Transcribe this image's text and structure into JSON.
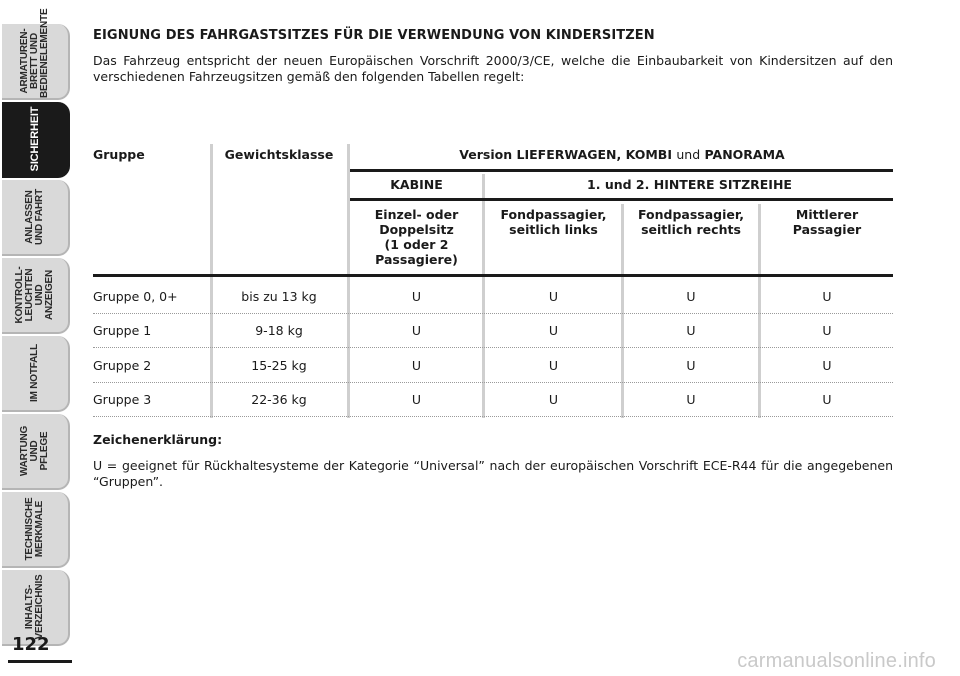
{
  "sidebar": {
    "tabs": [
      {
        "label": "ARMATUREN-\nBRETT UND\nBEDIENELEMENTE",
        "active": false
      },
      {
        "label": "SICHERHEIT",
        "active": true
      },
      {
        "label": "ANLASSEN\nUND FAHRT",
        "active": false
      },
      {
        "label": "KONTROLL-\nLEUCHTEN UND\nANZEIGEN",
        "active": false
      },
      {
        "label": "IM NOTFALL",
        "active": false
      },
      {
        "label": "WARTUNG UND\nPFLEGE",
        "active": false
      },
      {
        "label": "TECHNISCHE\nMERKMALE",
        "active": false
      },
      {
        "label": "INHALTS-\nVERZEICHNIS",
        "active": false
      }
    ],
    "page_number": "122"
  },
  "heading": "EIGNUNG DES FAHRGASTSITZES FÜR DIE VERWENDUNG VON KINDERSITZEN",
  "intro": "Das Fahrzeug entspricht der neuen Europäischen Vorschrift 2000/3/CE, welche die Einbaubarkeit von Kindersitzen auf den verschiedenen Fahrzeugsitzen gemäß den folgenden Tabellen regelt:",
  "table": {
    "col_group": "Gruppe",
    "col_weight": "Gewichtsklasse",
    "version_prefix": "Version",
    "version_bold": "LIEFERWAGEN, KOMBI",
    "version_und": "und",
    "version_bold2": "PANORAMA",
    "kabine": "KABINE",
    "rear_prefix": "1. und 2.",
    "rear_bold": "HINTERE SITZREIHE",
    "seat_cabin": "Einzel- oder\nDoppelsitz\n(1 oder 2\nPassagiere)",
    "seat_rear_left": "Fondpassagier,\nseitlich links",
    "seat_rear_right": "Fondpassagier,\nseitlich rechts",
    "seat_middle": "Mittlerer\nPassagier",
    "rows": [
      {
        "group": "Gruppe 0, 0+",
        "weight": "bis zu 13 kg",
        "vals": [
          "U",
          "U",
          "U",
          "U"
        ]
      },
      {
        "group": "Gruppe 1",
        "weight": "9-18 kg",
        "vals": [
          "U",
          "U",
          "U",
          "U"
        ]
      },
      {
        "group": "Gruppe 2",
        "weight": "15-25 kg",
        "vals": [
          "U",
          "U",
          "U",
          "U"
        ]
      },
      {
        "group": "Gruppe 3",
        "weight": "22-36 kg",
        "vals": [
          "U",
          "U",
          "U",
          "U"
        ]
      }
    ]
  },
  "legend_title": "Zeichenerklärung:",
  "legend_text": "U = geeignet für Rückhaltesysteme der Kategorie “Universal” nach der europäischen Vorschrift ECE-R44 für die angegebenen “Gruppen”.",
  "watermark": "carmanualsonline.info"
}
